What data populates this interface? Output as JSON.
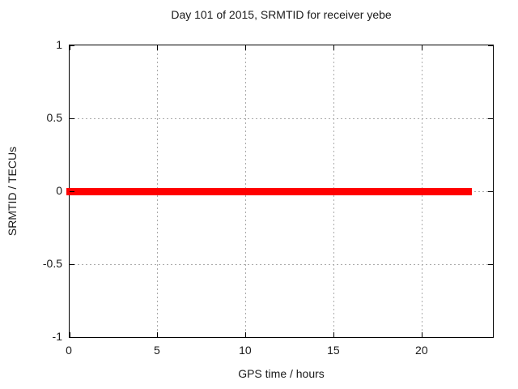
{
  "chart_data": {
    "type": "line",
    "title": "Day 101 of 2015, SRMTID for receiver yebe",
    "xlabel": "GPS time / hours",
    "ylabel": "SRMTID / TECUs",
    "xlim": [
      0,
      24
    ],
    "ylim": [
      -1,
      1
    ],
    "xticks": [
      {
        "value": 0,
        "label": "0"
      },
      {
        "value": 5,
        "label": "5"
      },
      {
        "value": 10,
        "label": "10"
      },
      {
        "value": 15,
        "label": "15"
      },
      {
        "value": 20,
        "label": "20"
      }
    ],
    "yticks": [
      {
        "value": 1,
        "label": "1"
      },
      {
        "value": 0.5,
        "label": "0.5"
      },
      {
        "value": 0,
        "label": "0"
      },
      {
        "value": -0.5,
        "label": "-0.5"
      },
      {
        "value": -1,
        "label": "-1"
      }
    ],
    "grid": true,
    "legend_position": "none",
    "series": [
      {
        "name": "SRMTID",
        "color": "#ff0000",
        "x": [
          0,
          22.8
        ],
        "y": [
          0,
          0
        ]
      }
    ]
  },
  "colors": {
    "background": "#ffffff",
    "axis": "#000000",
    "grid": "#aaaaaa",
    "text": "#1a1a1a",
    "series": "#ff0000"
  }
}
